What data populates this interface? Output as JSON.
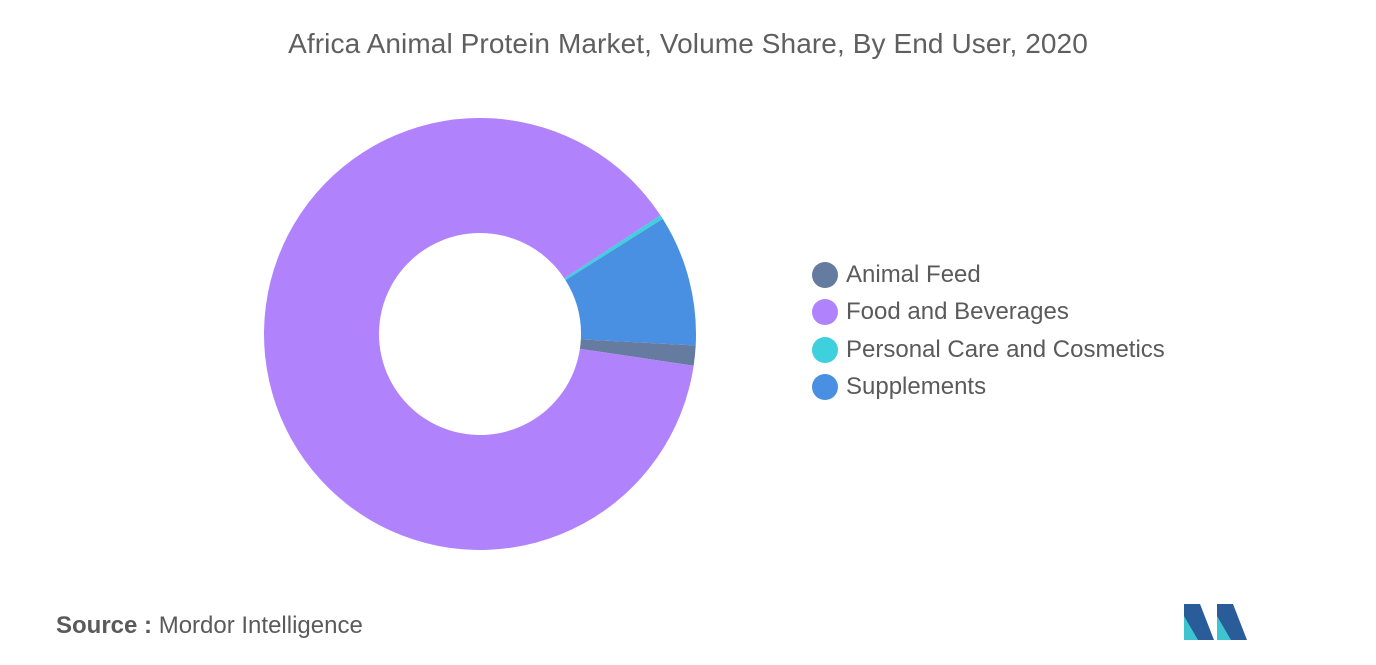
{
  "chart_data": {
    "type": "pie",
    "variant": "donut",
    "title": "Africa Animal Protein Market, Volume Share, By End User, 2020",
    "series": [
      {
        "name": "Animal Feed",
        "value": 1.5,
        "color": "#667ba0"
      },
      {
        "name": "Food and Beverages",
        "value": 88.4,
        "color": "#b083fd"
      },
      {
        "name": "Personal Care and Cosmetics",
        "value": 0.3,
        "color": "#3ed0dc"
      },
      {
        "name": "Supplements",
        "value": 9.8,
        "color": "#4a90e2"
      }
    ],
    "slice_order": [
      "Supplements",
      "Animal Feed",
      "Food and Beverages",
      "Personal Care and Cosmetics"
    ],
    "legend_position": "right",
    "data_labels": false
  },
  "footer": {
    "source_key": "Source :",
    "source_value": "Mordor Intelligence"
  },
  "logo": {
    "icon": "mordor-intelligence-logo",
    "colors": [
      "#2a5c9a",
      "#3ec4d0"
    ]
  }
}
